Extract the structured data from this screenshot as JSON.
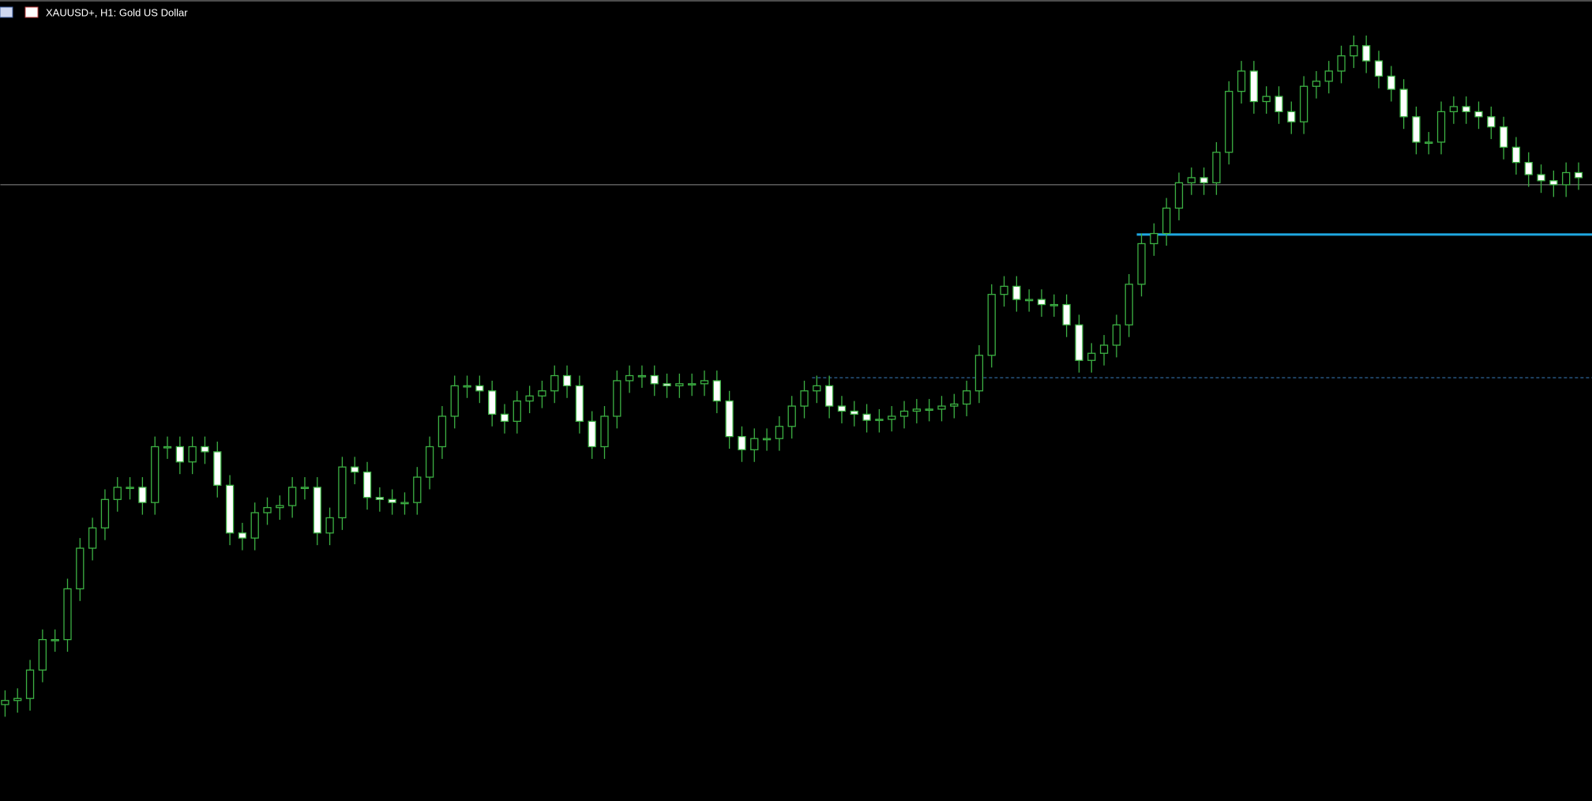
{
  "window": {
    "title": "XAUUSD+, H1:  Gold US Dollar"
  },
  "chart_data": {
    "type": "candlestick",
    "open": [
      95,
      99,
      101,
      129,
      159,
      159,
      209,
      249,
      269,
      297,
      309,
      309,
      294,
      349,
      349,
      334,
      349,
      344,
      311,
      264,
      259,
      284,
      289,
      291,
      309,
      309,
      264,
      279,
      329,
      324,
      299,
      297,
      294,
      294,
      319,
      349,
      379,
      409,
      409,
      404,
      381,
      374,
      394,
      399,
      404,
      419,
      409,
      374,
      349,
      379,
      414,
      419,
      419,
      411,
      409,
      411,
      411,
      414,
      394,
      359,
      346,
      357,
      357,
      369,
      389,
      404,
      409,
      389,
      384,
      381,
      375,
      376,
      379,
      384,
      386,
      386,
      389,
      391,
      404,
      439,
      499,
      507,
      494,
      494,
      489,
      489,
      469,
      434,
      441,
      449,
      469,
      509,
      549,
      559,
      584,
      609,
      614,
      609,
      639,
      699,
      719,
      689,
      694,
      679,
      669,
      704,
      709,
      719,
      734,
      744,
      729,
      714,
      701,
      674,
      649,
      649,
      679,
      684,
      679,
      674,
      664,
      644,
      629,
      617,
      611,
      607,
      619
    ],
    "high": [
      109,
      111,
      139,
      169,
      169,
      219,
      259,
      279,
      307,
      319,
      319,
      319,
      359,
      359,
      359,
      359,
      359,
      354,
      321,
      274,
      294,
      299,
      301,
      319,
      319,
      319,
      289,
      339,
      339,
      334,
      309,
      307,
      304,
      329,
      359,
      389,
      419,
      419,
      419,
      414,
      391,
      404,
      409,
      414,
      429,
      429,
      419,
      384,
      389,
      424,
      429,
      429,
      429,
      421,
      421,
      421,
      424,
      424,
      404,
      369,
      367,
      367,
      379,
      399,
      414,
      419,
      419,
      399,
      394,
      391,
      386,
      389,
      394,
      396,
      396,
      399,
      401,
      414,
      449,
      509,
      517,
      517,
      504,
      504,
      499,
      499,
      479,
      451,
      459,
      479,
      519,
      559,
      569,
      594,
      619,
      624,
      624,
      649,
      709,
      729,
      729,
      704,
      704,
      689,
      714,
      719,
      729,
      744,
      754,
      754,
      739,
      724,
      711,
      684,
      659,
      689,
      694,
      694,
      689,
      684,
      674,
      654,
      639,
      627,
      621,
      629,
      629
    ],
    "low": [
      83,
      87,
      89,
      117,
      147,
      147,
      197,
      237,
      257,
      285,
      297,
      282,
      282,
      337,
      322,
      322,
      332,
      299,
      252,
      247,
      247,
      272,
      277,
      279,
      297,
      252,
      252,
      267,
      312,
      287,
      285,
      282,
      282,
      282,
      307,
      337,
      367,
      397,
      392,
      369,
      362,
      362,
      382,
      387,
      392,
      397,
      362,
      337,
      337,
      367,
      402,
      407,
      399,
      397,
      397,
      399,
      399,
      382,
      347,
      334,
      334,
      345,
      345,
      357,
      377,
      392,
      377,
      372,
      369,
      363,
      363,
      364,
      367,
      372,
      374,
      374,
      377,
      379,
      392,
      427,
      487,
      482,
      482,
      477,
      477,
      457,
      422,
      422,
      429,
      437,
      457,
      497,
      537,
      547,
      572,
      597,
      597,
      597,
      627,
      687,
      677,
      677,
      667,
      657,
      657,
      692,
      697,
      707,
      722,
      717,
      702,
      689,
      662,
      637,
      637,
      637,
      667,
      667,
      662,
      652,
      632,
      617,
      605,
      599,
      595,
      595,
      602
    ],
    "close": [
      99,
      101,
      129,
      159,
      159,
      209,
      249,
      269,
      297,
      309,
      309,
      294,
      349,
      349,
      334,
      349,
      344,
      311,
      264,
      259,
      284,
      289,
      291,
      309,
      309,
      264,
      279,
      329,
      324,
      299,
      297,
      294,
      294,
      319,
      349,
      379,
      409,
      409,
      404,
      381,
      374,
      394,
      399,
      404,
      419,
      409,
      374,
      349,
      379,
      414,
      419,
      419,
      411,
      409,
      411,
      411,
      414,
      394,
      359,
      346,
      357,
      357,
      369,
      389,
      404,
      409,
      389,
      384,
      381,
      375,
      376,
      379,
      384,
      386,
      386,
      389,
      391,
      404,
      439,
      499,
      507,
      494,
      494,
      489,
      489,
      469,
      434,
      441,
      449,
      469,
      509,
      549,
      559,
      584,
      609,
      614,
      609,
      639,
      699,
      719,
      689,
      694,
      679,
      669,
      704,
      709,
      719,
      734,
      744,
      729,
      714,
      701,
      674,
      649,
      649,
      679,
      684,
      679,
      674,
      664,
      644,
      629,
      617,
      611,
      607,
      619,
      614
    ],
    "ylim": [
      0,
      789
    ],
    "up_color": "#000000",
    "down_color": "#ffffff",
    "wick_color": "#3cb043",
    "levels": [
      {
        "value": 607,
        "color": "#8c8c8c",
        "style": "solid",
        "start": 0
      },
      {
        "value": 558,
        "color": "#1ea7e0",
        "style": "thick",
        "start": 91
      },
      {
        "value": 417,
        "color": "#3a7fc0",
        "style": "dashed",
        "start": 65
      }
    ]
  }
}
